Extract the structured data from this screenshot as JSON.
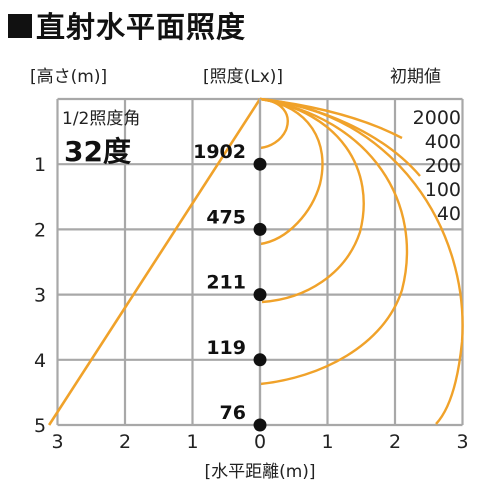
{
  "title": "直射水平面照度",
  "labels": {
    "height_axis": "[高さ(m)]",
    "illuminance": "[照度(Lx)]",
    "initial": "初期値",
    "beam_angle_label": "1/2照度角",
    "beam_angle_value": "32度",
    "horizontal_axis": "[水平距離(m)]"
  },
  "colors": {
    "curve": "#f0a22a",
    "grid": "#a8a8a8",
    "point": "#111111"
  },
  "chart_data": {
    "type": "diagram",
    "beam_half_angle_deg": 32,
    "y_ticks": [
      1,
      2,
      3,
      4,
      5
    ],
    "x_ticks": [
      3,
      2,
      1,
      0,
      1,
      2,
      3
    ],
    "x_range_m": [
      -3,
      3
    ],
    "y_range_m": [
      0,
      5
    ],
    "center_illuminance": [
      {
        "height": 1,
        "lx": "1902"
      },
      {
        "height": 2,
        "lx": "475"
      },
      {
        "height": 3,
        "lx": "211"
      },
      {
        "height": 4,
        "lx": "119"
      },
      {
        "height": 5,
        "lx": "76"
      }
    ],
    "isolux_levels": [
      "2000",
      "400",
      "200",
      "100",
      "40"
    ]
  }
}
